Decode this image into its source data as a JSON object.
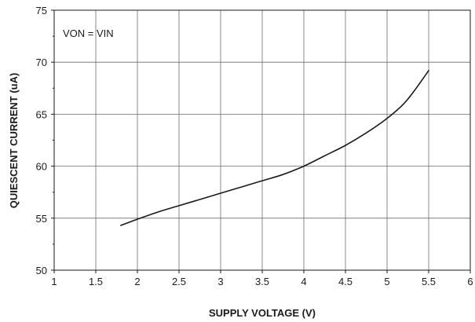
{
  "chart_data": {
    "type": "line",
    "title": "",
    "xlabel": "SUPPLY VOLTAGE (V)",
    "ylabel": "QUIESCENT CURRENT (uA)",
    "xlim": [
      1,
      6
    ],
    "ylim": [
      50,
      75
    ],
    "xticks": [
      1,
      1.5,
      2,
      2.5,
      3,
      3.5,
      4,
      4.5,
      5,
      5.5,
      6
    ],
    "xtick_labels": [
      "1",
      "1.5",
      "2",
      "2.5",
      "3",
      "3.5",
      "4",
      "4.5",
      "5",
      "5.5",
      "6"
    ],
    "yticks": [
      50,
      55,
      60,
      65,
      70,
      75
    ],
    "ytick_labels": [
      "50",
      "55",
      "60",
      "65",
      "70",
      "75"
    ],
    "grid": true,
    "annotation": "VON = VIN",
    "line_color": "#1a1a1a",
    "series": [
      {
        "x": [
          1.8,
          2.0,
          2.25,
          2.5,
          2.75,
          3.0,
          3.25,
          3.5,
          3.75,
          4.0,
          4.25,
          4.5,
          4.75,
          5.0,
          5.2,
          5.35,
          5.5
        ],
        "values": [
          54.3,
          54.9,
          55.6,
          56.2,
          56.8,
          57.4,
          58.0,
          58.6,
          59.2,
          60.0,
          61.0,
          62.0,
          63.2,
          64.6,
          66.0,
          67.5,
          69.2
        ]
      }
    ]
  }
}
